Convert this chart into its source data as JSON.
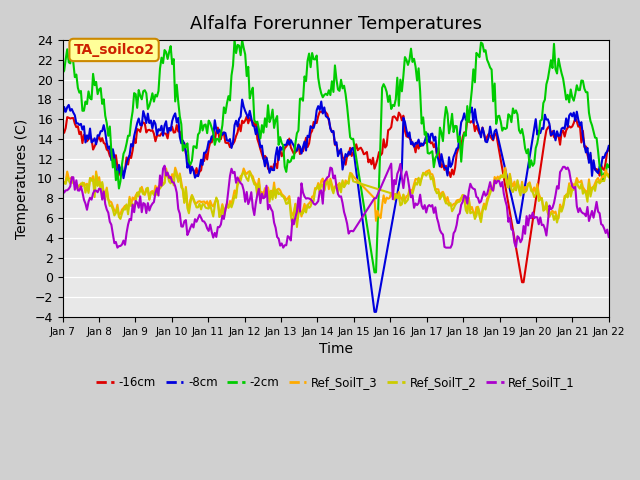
{
  "title": "Alfalfa Forerunner Temperatures",
  "xlabel": "Time",
  "ylabel": "Temperatures (C)",
  "ylim": [
    -4,
    24
  ],
  "yticks": [
    -4,
    -2,
    0,
    2,
    4,
    6,
    8,
    10,
    12,
    14,
    16,
    18,
    20,
    22,
    24
  ],
  "bg_color": "#d0d0d0",
  "plot_bg": "#e8e8e8",
  "annotation_text": "TA_soilco2",
  "annotation_color": "#cc2200",
  "annotation_bg": "#ffff99",
  "annotation_border": "#cc8800",
  "series": {
    "neg16cm": {
      "label": "-16cm",
      "color": "#dd0000",
      "lw": 1.5
    },
    "neg8cm": {
      "label": "-8cm",
      "color": "#0000dd",
      "lw": 1.5
    },
    "neg2cm": {
      "label": "-2cm",
      "color": "#00cc00",
      "lw": 1.5
    },
    "ref3": {
      "label": "Ref_SoilT_3",
      "color": "#ffaa00",
      "lw": 1.5
    },
    "ref2": {
      "label": "Ref_SoilT_2",
      "color": "#cccc00",
      "lw": 1.5
    },
    "ref1": {
      "label": "Ref_SoilT_1",
      "color": "#aa00cc",
      "lw": 1.5
    }
  },
  "n_points": 360,
  "x_start": 7,
  "x_end": 22,
  "xtick_positions": [
    7,
    8,
    9,
    10,
    11,
    12,
    13,
    14,
    15,
    16,
    17,
    18,
    19,
    20,
    21,
    22
  ],
  "xtick_labels": [
    "Jan 7",
    "Jan 8",
    "Jan 9",
    "Jan 10",
    "Jan 11",
    "Jan 12",
    "Jan 13",
    "Jan 14",
    "Jan 15",
    "Jan 16",
    "Jan 17",
    "Jan 18",
    "Jan 19",
    "Jan 20",
    "Jan 21",
    "Jan 22"
  ]
}
